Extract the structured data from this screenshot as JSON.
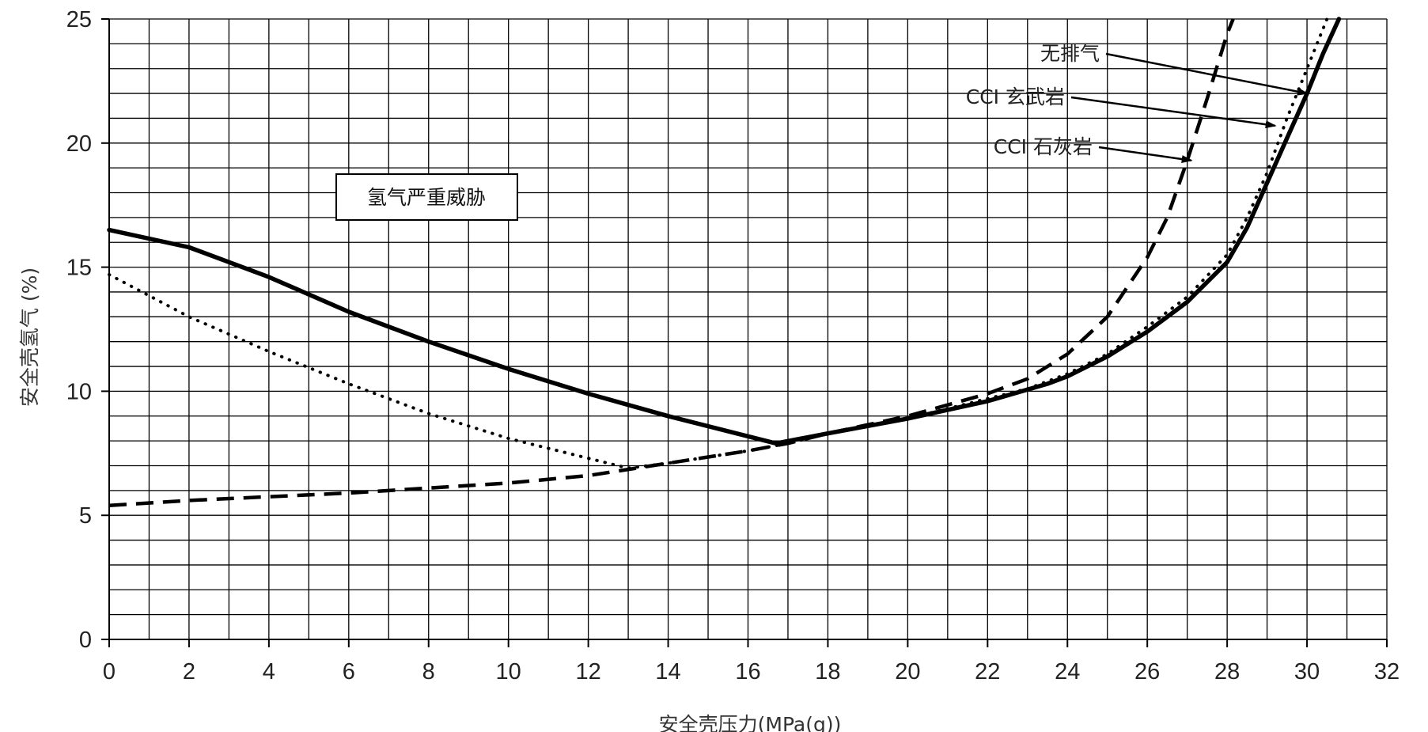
{
  "chart_data": {
    "type": "line",
    "xlabel": "安全壳压力(MPa(g))",
    "ylabel": "安全壳氢气 (%)",
    "xlim": [
      0,
      32
    ],
    "ylim": [
      0,
      25
    ],
    "x_ticks": [
      "0",
      "2",
      "4",
      "6",
      "8",
      "10",
      "12",
      "14",
      "16",
      "18",
      "20",
      "22",
      "24",
      "26",
      "28",
      "30",
      "32"
    ],
    "y_ticks": [
      "0",
      "5",
      "10",
      "15",
      "20",
      "25"
    ],
    "grid": true,
    "region_label": "氢气严重威胁",
    "series": [
      {
        "name": "无排气",
        "style": "solid",
        "points": [
          [
            0,
            16.5
          ],
          [
            2,
            15.8
          ],
          [
            4,
            14.6
          ],
          [
            6,
            13.2
          ],
          [
            8,
            12.0
          ],
          [
            10,
            10.9
          ],
          [
            12,
            9.9
          ],
          [
            14,
            9.0
          ],
          [
            16.7,
            7.9
          ],
          [
            18,
            8.3
          ],
          [
            20,
            8.9
          ],
          [
            22,
            9.6
          ],
          [
            23.5,
            10.3
          ],
          [
            24,
            10.6
          ],
          [
            25,
            11.4
          ],
          [
            26,
            12.4
          ],
          [
            27,
            13.6
          ],
          [
            28,
            15.2
          ],
          [
            28.5,
            16.6
          ],
          [
            29,
            18.4
          ],
          [
            29.5,
            20.2
          ],
          [
            30,
            22.0
          ],
          [
            30.4,
            23.6
          ],
          [
            30.8,
            25.0
          ]
        ]
      },
      {
        "name": "CCI 玄武岩",
        "style": "dotted",
        "points": [
          [
            0,
            14.7
          ],
          [
            2,
            13.0
          ],
          [
            4,
            11.6
          ],
          [
            6,
            10.3
          ],
          [
            8,
            9.1
          ],
          [
            10,
            8.1
          ],
          [
            12,
            7.3
          ],
          [
            13,
            6.9
          ],
          [
            14,
            7.1
          ],
          [
            16,
            7.6
          ],
          [
            17,
            7.9
          ],
          [
            18,
            8.3
          ],
          [
            20,
            8.9
          ],
          [
            22,
            9.7
          ],
          [
            23,
            10.1
          ],
          [
            24,
            10.7
          ],
          [
            25,
            11.5
          ],
          [
            26,
            12.6
          ],
          [
            27,
            13.8
          ],
          [
            28,
            15.5
          ],
          [
            28.5,
            17.0
          ],
          [
            29,
            18.8
          ],
          [
            29.5,
            21.0
          ],
          [
            30,
            23.0
          ],
          [
            30.5,
            25.0
          ]
        ]
      },
      {
        "name": "CCI 石灰岩",
        "style": "dashed",
        "points": [
          [
            0,
            5.4
          ],
          [
            2,
            5.6
          ],
          [
            4,
            5.75
          ],
          [
            6,
            5.9
          ],
          [
            8,
            6.1
          ],
          [
            10,
            6.3
          ],
          [
            12,
            6.6
          ],
          [
            14,
            7.1
          ],
          [
            16,
            7.6
          ],
          [
            17,
            7.9
          ],
          [
            18,
            8.3
          ],
          [
            20,
            9.0
          ],
          [
            22,
            9.9
          ],
          [
            23,
            10.5
          ],
          [
            24,
            11.5
          ],
          [
            25,
            13.0
          ],
          [
            26,
            15.4
          ],
          [
            26.5,
            17.0
          ],
          [
            27,
            19.3
          ],
          [
            27.5,
            21.8
          ],
          [
            28,
            24.4
          ],
          [
            28.15,
            25.0
          ]
        ]
      }
    ],
    "annotations": [
      {
        "text": "无排气",
        "target": [
          30,
          22.0
        ]
      },
      {
        "text": "CCI 玄武岩",
        "target": [
          29.2,
          20.7
        ]
      },
      {
        "text": "CCI 石灰岩",
        "target": [
          27.1,
          19.3
        ]
      }
    ]
  }
}
